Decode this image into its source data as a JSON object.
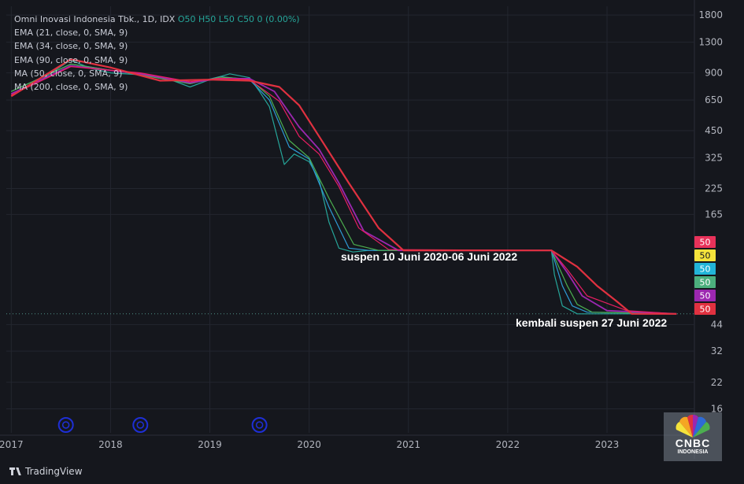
{
  "legend": {
    "symbol": "Omni Inovasi Indonesia Tbk., 1D, IDX",
    "ohlc": "O50 H50 L50 C50 0 (0.00%)",
    "ema21": "EMA (21, close, 0, SMA, 9)",
    "ema34": "EMA (34, close, 0, SMA, 9)",
    "ema90": "EMA (90, close, 0, SMA, 9)",
    "ma50": "MA (50, close, 0, SMA, 9)",
    "ma200": "MA (200, close, 0, SMA, 9)"
  },
  "annotations": {
    "suspend1": "suspen 10 Juni 2020-06 Juni 2022",
    "suspend2": "kembali suspen 27 Juni 2022"
  },
  "branding": {
    "tradingview": "TradingView",
    "cnbc": "CNBC",
    "cnbc_sub": "INDONESIA"
  },
  "colors": {
    "background": "#15171d",
    "grid": "#23262f",
    "candles": "#26a69a",
    "ema21": "#2e9bd6",
    "ema34": "#4caf50",
    "ema90": "#9c27b0",
    "ma50": "#e91e63",
    "ma200": "#e03140",
    "badges": [
      "#e8325a",
      "#f5e33b",
      "#22b5d8",
      "#4caf7d",
      "#9c27b0",
      "#e03140"
    ]
  },
  "chart_data": {
    "type": "line",
    "scale": "log",
    "title": "Omni Inovasi Indonesia Tbk., 1D, IDX",
    "ylim": [
      12,
      2000
    ],
    "y_ticks": [
      1800,
      1300,
      900,
      650,
      450,
      325,
      225,
      165,
      44,
      32,
      22,
      16
    ],
    "x_ticks": [
      "2017",
      "2018",
      "2019",
      "2020",
      "2021",
      "2022",
      "2023"
    ],
    "price_badges": [
      "50",
      "50",
      "50",
      "50",
      "50",
      "50"
    ],
    "last_price": 50,
    "grid": true,
    "series": [
      {
        "name": "Price",
        "x": [
          2017.0,
          2017.3,
          2017.6,
          2017.8,
          2018.0,
          2018.3,
          2018.6,
          2018.8,
          2019.0,
          2019.2,
          2019.4,
          2019.5,
          2019.6,
          2019.75,
          2019.85,
          2020.0,
          2020.1,
          2020.2,
          2020.3,
          2020.44,
          2020.6,
          2021.0,
          2022.0,
          2022.44,
          2022.47,
          2022.55,
          2022.7,
          2023.0,
          2023.7
        ],
        "y": [
          700,
          830,
          1050,
          950,
          900,
          880,
          830,
          760,
          830,
          890,
          850,
          720,
          600,
          300,
          340,
          310,
          250,
          150,
          110,
          105,
          107,
          107,
          107,
          107,
          80,
          55,
          50,
          50,
          50
        ]
      },
      {
        "name": "EMA (21, close, 0, SMA, 9)",
        "x": [
          2017.0,
          2017.6,
          2018.3,
          2018.8,
          2019.1,
          2019.4,
          2019.6,
          2019.8,
          2020.0,
          2020.2,
          2020.4,
          2020.6,
          2022.44,
          2022.55,
          2022.65,
          2022.8,
          2023.7
        ],
        "y": [
          720,
          1000,
          880,
          790,
          860,
          830,
          650,
          370,
          320,
          180,
          110,
          107,
          107,
          70,
          55,
          51,
          50
        ]
      },
      {
        "name": "EMA (34, close, 0, SMA, 9)",
        "x": [
          2017.0,
          2017.6,
          2018.3,
          2018.8,
          2019.1,
          2019.4,
          2019.6,
          2019.8,
          2020.0,
          2020.2,
          2020.45,
          2020.7,
          2022.44,
          2022.6,
          2022.7,
          2022.85,
          2023.7
        ],
        "y": [
          720,
          1000,
          880,
          790,
          855,
          835,
          680,
          400,
          325,
          200,
          115,
          107,
          107,
          70,
          56,
          51,
          50
        ]
      },
      {
        "name": "EMA (90, close, 0, SMA, 9)",
        "x": [
          2017.0,
          2017.6,
          2018.3,
          2018.8,
          2019.1,
          2019.4,
          2019.65,
          2019.9,
          2020.1,
          2020.3,
          2020.55,
          2020.9,
          2022.44,
          2022.6,
          2022.75,
          2023.0,
          2023.7
        ],
        "y": [
          700,
          980,
          890,
          800,
          840,
          840,
          720,
          470,
          360,
          240,
          135,
          107,
          107,
          82,
          62,
          52,
          50
        ]
      },
      {
        "name": "MA (50, close, 0, SMA, 9)",
        "x": [
          2017.0,
          2017.6,
          2018.3,
          2018.8,
          2019.1,
          2019.4,
          2019.7,
          2019.9,
          2020.1,
          2020.3,
          2020.5,
          2020.8,
          2022.44,
          2022.6,
          2022.8,
          2023.2,
          2023.7
        ],
        "y": [
          690,
          970,
          900,
          810,
          845,
          830,
          640,
          420,
          340,
          230,
          140,
          108,
          107,
          85,
          62,
          52,
          50
        ]
      },
      {
        "name": "MA (200, close, 0, SMA, 9)",
        "x": [
          2017.0,
          2017.6,
          2018.0,
          2018.5,
          2019.0,
          2019.4,
          2019.7,
          2019.9,
          2020.1,
          2020.4,
          2020.7,
          2020.95,
          2022.44,
          2022.7,
          2022.9,
          2023.1,
          2023.25,
          2023.7
        ],
        "y": [
          680,
          1060,
          960,
          820,
          830,
          820,
          760,
          610,
          420,
          240,
          140,
          107,
          107,
          88,
          70,
          58,
          50,
          50
        ]
      }
    ]
  }
}
